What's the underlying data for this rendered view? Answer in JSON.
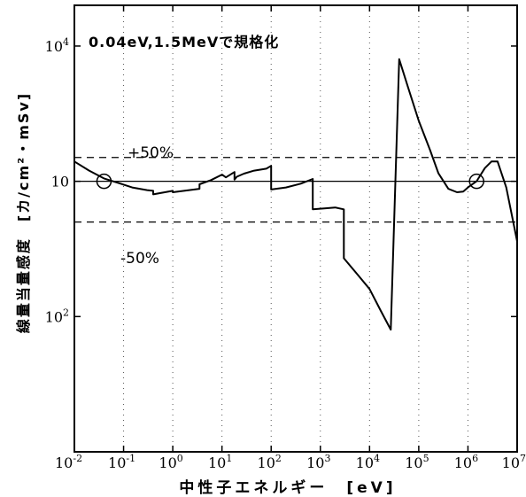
{
  "chart_data": {
    "type": "line",
    "title": "",
    "annotation": "0.04eV,1.5MeVで規格化",
    "xlabel": "中性子エネルギー　[eV]",
    "ylabel": "線量当量感度　[カ/cm²・mSv]",
    "x_scale": "log",
    "y_scale": "log",
    "xlim": [
      0.01,
      10000000
    ],
    "ylim": [
      10,
      20000
    ],
    "x_ticks": [
      {
        "value": 0.01,
        "base": "10",
        "exp": "-2"
      },
      {
        "value": 0.1,
        "base": "10",
        "exp": "-1"
      },
      {
        "value": 1,
        "base": "10",
        "exp": "0"
      },
      {
        "value": 10,
        "base": "10",
        "exp": "1"
      },
      {
        "value": 100,
        "base": "10",
        "exp": "2"
      },
      {
        "value": 1000,
        "base": "10",
        "exp": "3"
      },
      {
        "value": 10000,
        "base": "10",
        "exp": "4"
      },
      {
        "value": 100000,
        "base": "10",
        "exp": "5"
      },
      {
        "value": 1000000,
        "base": "10",
        "exp": "6"
      },
      {
        "value": 10000000,
        "base": "10",
        "exp": "7"
      }
    ],
    "y_ticks": [
      {
        "value": 10000,
        "base": "10",
        "exp": "4"
      },
      {
        "value": 1000,
        "base": "10",
        "exp": ""
      },
      {
        "value": 100,
        "base": "10",
        "exp": "2"
      }
    ],
    "reference_lines": [
      {
        "label": "+50%",
        "y": 1500,
        "style": "dashed"
      },
      {
        "label": "",
        "y": 1000,
        "style": "solid"
      },
      {
        "label": "-50%",
        "y": 500,
        "style": "dashed"
      }
    ],
    "normalization_points": [
      {
        "x": 0.04,
        "y": 1000
      },
      {
        "x": 1500000,
        "y": 1000
      }
    ],
    "series": [
      {
        "x": [
          0.01,
          0.02,
          0.04,
          0.08,
          0.15,
          0.3,
          0.4,
          0.4,
          1,
          1,
          3.5,
          3.5,
          6,
          10,
          12,
          18,
          18,
          20,
          28,
          45,
          80,
          100,
          100,
          200,
          400,
          700,
          700,
          1200,
          2000,
          3000,
          3000,
          6000,
          10000,
          17000,
          27000,
          27000,
          40000,
          60000,
          100000,
          170000,
          250000,
          400000,
          600000,
          800000,
          1000000,
          1500000,
          2200000,
          3000000,
          4000000,
          6000000,
          10000000
        ],
        "y": [
          1400,
          1200,
          1050,
          970,
          900,
          860,
          850,
          800,
          850,
          830,
          880,
          950,
          1020,
          1120,
          1070,
          1170,
          1030,
          1080,
          1140,
          1200,
          1240,
          1300,
          870,
          900,
          960,
          1040,
          620,
          630,
          640,
          620,
          270,
          200,
          160,
          110,
          80,
          80,
          8000,
          5000,
          2800,
          1700,
          1150,
          880,
          830,
          840,
          900,
          1000,
          1250,
          1400,
          1400,
          900,
          360
        ]
      }
    ],
    "grid": "vertical dotted at decades"
  },
  "labels": {
    "percent_up": "+50%",
    "percent_down": "-50%"
  }
}
